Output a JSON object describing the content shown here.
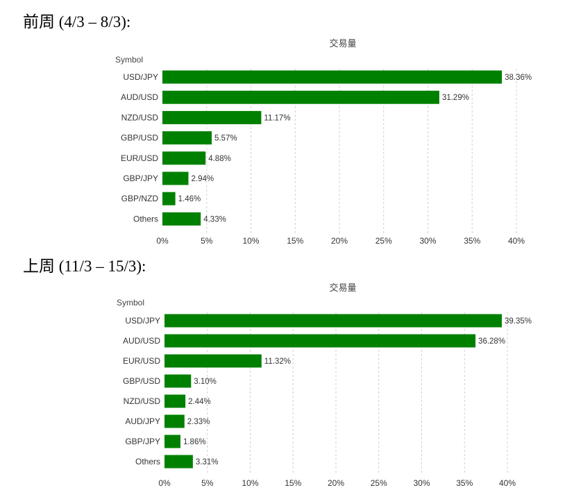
{
  "sections": [
    {
      "heading": "前周 (4/3 – 8/3):"
    },
    {
      "heading": "上周 (11/3 – 15/3):"
    }
  ],
  "chart_data": [
    {
      "type": "bar",
      "orientation": "horizontal",
      "title": "交易量",
      "ylabel": "Symbol",
      "xlabel": "",
      "xlim": [
        0,
        40
      ],
      "xticks": [
        "0%",
        "5%",
        "10%",
        "15%",
        "20%",
        "25%",
        "30%",
        "35%",
        "40%"
      ],
      "grid": true,
      "bar_color": "#008000",
      "categories": [
        "USD/JPY",
        "AUD/USD",
        "NZD/USD",
        "GBP/USD",
        "EUR/USD",
        "GBP/JPY",
        "GBP/NZD",
        "Others"
      ],
      "values": [
        38.36,
        31.29,
        11.17,
        5.57,
        4.88,
        2.94,
        1.46,
        4.33
      ],
      "data_labels": [
        "38.36%",
        "31.29%",
        "11.17%",
        "5.57%",
        "4.88%",
        "2.94%",
        "1.46%",
        "4.33%"
      ]
    },
    {
      "type": "bar",
      "orientation": "horizontal",
      "title": "交易量",
      "ylabel": "Symbol",
      "xlabel": "",
      "xlim": [
        0,
        40
      ],
      "xticks": [
        "0%",
        "5%",
        "10%",
        "15%",
        "20%",
        "25%",
        "30%",
        "35%",
        "40%"
      ],
      "grid": true,
      "bar_color": "#008000",
      "categories": [
        "USD/JPY",
        "AUD/USD",
        "EUR/USD",
        "GBP/USD",
        "NZD/USD",
        "AUD/JPY",
        "GBP/JPY",
        "Others"
      ],
      "values": [
        39.35,
        36.28,
        11.32,
        3.1,
        2.44,
        2.33,
        1.86,
        3.31
      ],
      "data_labels": [
        "39.35%",
        "36.28%",
        "11.32%",
        "3.10%",
        "2.44%",
        "2.33%",
        "1.86%",
        "3.31%"
      ]
    }
  ]
}
